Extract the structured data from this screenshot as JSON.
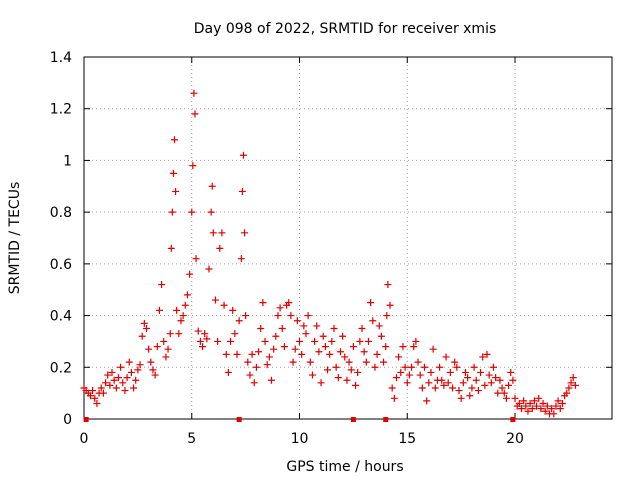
{
  "chart_data": {
    "type": "scatter",
    "title": "Day 098 of 2022, SRMTID for receiver xmis",
    "xlabel": "GPS time / hours",
    "ylabel": "SRMTID / TECUs",
    "xlim": [
      0,
      24.5
    ],
    "ylim": [
      0,
      1.4
    ],
    "xticks": [
      0,
      5,
      10,
      15,
      20
    ],
    "xtick_labels": [
      "0",
      "5",
      "10",
      "15",
      "20"
    ],
    "yticks": [
      0,
      0.2,
      0.4,
      0.6,
      0.8,
      1.0,
      1.2,
      1.4
    ],
    "ytick_labels": [
      "0",
      "0.2",
      "0.4",
      "0.6",
      "0.8",
      "1",
      "1.2",
      "1.4"
    ],
    "grid": true,
    "marker": "+",
    "color": "#e00000",
    "series": [
      {
        "name": "SRMTID",
        "points": [
          [
            0.0,
            0.12
          ],
          [
            0.1,
            0.11
          ],
          [
            0.2,
            0.1
          ],
          [
            0.3,
            0.09
          ],
          [
            0.4,
            0.11
          ],
          [
            0.5,
            0.08
          ],
          [
            0.6,
            0.06
          ],
          [
            0.7,
            0.1
          ],
          [
            0.8,
            0.12
          ],
          [
            0.9,
            0.1
          ],
          [
            1.0,
            0.14
          ],
          [
            1.1,
            0.17
          ],
          [
            1.2,
            0.13
          ],
          [
            1.3,
            0.18
          ],
          [
            1.4,
            0.15
          ],
          [
            1.5,
            0.12
          ],
          [
            1.6,
            0.16
          ],
          [
            1.7,
            0.2
          ],
          [
            1.8,
            0.14
          ],
          [
            1.9,
            0.11
          ],
          [
            2.0,
            0.16
          ],
          [
            2.1,
            0.22
          ],
          [
            2.2,
            0.18
          ],
          [
            2.3,
            0.12
          ],
          [
            2.4,
            0.15
          ],
          [
            2.5,
            0.19
          ],
          [
            2.6,
            0.21
          ],
          [
            2.7,
            0.32
          ],
          [
            2.8,
            0.37
          ],
          [
            2.9,
            0.35
          ],
          [
            3.0,
            0.27
          ],
          [
            3.1,
            0.22
          ],
          [
            3.2,
            0.19
          ],
          [
            3.3,
            0.17
          ],
          [
            3.4,
            0.28
          ],
          [
            3.5,
            0.42
          ],
          [
            3.6,
            0.52
          ],
          [
            3.7,
            0.3
          ],
          [
            3.8,
            0.24
          ],
          [
            3.9,
            0.27
          ],
          [
            4.0,
            0.33
          ],
          [
            4.05,
            0.66
          ],
          [
            4.1,
            0.8
          ],
          [
            4.15,
            0.95
          ],
          [
            4.2,
            1.08
          ],
          [
            4.25,
            0.88
          ],
          [
            4.3,
            0.42
          ],
          [
            4.4,
            0.33
          ],
          [
            4.5,
            0.38
          ],
          [
            4.6,
            0.4
          ],
          [
            4.7,
            0.44
          ],
          [
            4.8,
            0.48
          ],
          [
            4.9,
            0.56
          ],
          [
            5.0,
            0.8
          ],
          [
            5.05,
            0.98
          ],
          [
            5.1,
            1.26
          ],
          [
            5.15,
            1.18
          ],
          [
            5.2,
            0.62
          ],
          [
            5.3,
            0.34
          ],
          [
            5.4,
            0.3
          ],
          [
            5.5,
            0.28
          ],
          [
            5.6,
            0.33
          ],
          [
            5.7,
            0.31
          ],
          [
            5.8,
            0.58
          ],
          [
            5.9,
            0.8
          ],
          [
            5.95,
            0.9
          ],
          [
            6.0,
            0.72
          ],
          [
            6.1,
            0.46
          ],
          [
            6.2,
            0.3
          ],
          [
            6.3,
            0.66
          ],
          [
            6.4,
            0.72
          ],
          [
            6.5,
            0.44
          ],
          [
            6.6,
            0.25
          ],
          [
            6.7,
            0.18
          ],
          [
            6.8,
            0.3
          ],
          [
            6.9,
            0.42
          ],
          [
            7.0,
            0.33
          ],
          [
            7.1,
            0.25
          ],
          [
            7.2,
            0.38
          ],
          [
            7.3,
            0.62
          ],
          [
            7.35,
            0.88
          ],
          [
            7.4,
            1.02
          ],
          [
            7.45,
            0.72
          ],
          [
            7.5,
            0.4
          ],
          [
            7.6,
            0.22
          ],
          [
            7.7,
            0.17
          ],
          [
            7.8,
            0.25
          ],
          [
            7.9,
            0.14
          ],
          [
            8.0,
            0.2
          ],
          [
            8.1,
            0.26
          ],
          [
            8.2,
            0.35
          ],
          [
            8.3,
            0.45
          ],
          [
            8.4,
            0.3
          ],
          [
            8.5,
            0.21
          ],
          [
            8.6,
            0.24
          ],
          [
            8.7,
            0.15
          ],
          [
            8.8,
            0.27
          ],
          [
            8.9,
            0.32
          ],
          [
            9.0,
            0.4
          ],
          [
            9.1,
            0.43
          ],
          [
            9.2,
            0.35
          ],
          [
            9.3,
            0.28
          ],
          [
            9.4,
            0.44
          ],
          [
            9.5,
            0.45
          ],
          [
            9.6,
            0.4
          ],
          [
            9.7,
            0.22
          ],
          [
            9.8,
            0.27
          ],
          [
            9.9,
            0.38
          ],
          [
            10.0,
            0.3
          ],
          [
            10.1,
            0.25
          ],
          [
            10.2,
            0.36
          ],
          [
            10.3,
            0.33
          ],
          [
            10.4,
            0.4
          ],
          [
            10.5,
            0.22
          ],
          [
            10.6,
            0.17
          ],
          [
            10.7,
            0.3
          ],
          [
            10.8,
            0.36
          ],
          [
            10.9,
            0.26
          ],
          [
            11.0,
            0.14
          ],
          [
            11.1,
            0.32
          ],
          [
            11.2,
            0.28
          ],
          [
            11.3,
            0.19
          ],
          [
            11.4,
            0.25
          ],
          [
            11.5,
            0.3
          ],
          [
            11.6,
            0.35
          ],
          [
            11.7,
            0.2
          ],
          [
            11.8,
            0.16
          ],
          [
            11.9,
            0.26
          ],
          [
            12.0,
            0.32
          ],
          [
            12.1,
            0.24
          ],
          [
            12.2,
            0.15
          ],
          [
            12.3,
            0.22
          ],
          [
            12.4,
            0.19
          ],
          [
            12.5,
            0.28
          ],
          [
            12.6,
            0.13
          ],
          [
            12.7,
            0.18
          ],
          [
            12.8,
            0.3
          ],
          [
            12.9,
            0.35
          ],
          [
            13.0,
            0.26
          ],
          [
            13.1,
            0.22
          ],
          [
            13.2,
            0.3
          ],
          [
            13.3,
            0.45
          ],
          [
            13.4,
            0.38
          ],
          [
            13.5,
            0.2
          ],
          [
            13.6,
            0.25
          ],
          [
            13.7,
            0.36
          ],
          [
            13.8,
            0.32
          ],
          [
            13.9,
            0.22
          ],
          [
            14.0,
            0.28
          ],
          [
            14.05,
            0.4
          ],
          [
            14.1,
            0.52
          ],
          [
            14.2,
            0.44
          ],
          [
            14.3,
            0.12
          ],
          [
            14.4,
            0.08
          ],
          [
            14.5,
            0.16
          ],
          [
            14.6,
            0.24
          ],
          [
            14.7,
            0.18
          ],
          [
            14.8,
            0.28
          ],
          [
            14.9,
            0.2
          ],
          [
            15.0,
            0.14
          ],
          [
            15.1,
            0.17
          ],
          [
            15.2,
            0.2
          ],
          [
            15.3,
            0.28
          ],
          [
            15.4,
            0.3
          ],
          [
            15.5,
            0.22
          ],
          [
            15.6,
            0.17
          ],
          [
            15.7,
            0.12
          ],
          [
            15.8,
            0.2
          ],
          [
            15.9,
            0.07
          ],
          [
            16.0,
            0.14
          ],
          [
            16.1,
            0.18
          ],
          [
            16.2,
            0.27
          ],
          [
            16.3,
            0.12
          ],
          [
            16.4,
            0.15
          ],
          [
            16.5,
            0.2
          ],
          [
            16.6,
            0.15
          ],
          [
            16.7,
            0.13
          ],
          [
            16.8,
            0.24
          ],
          [
            16.9,
            0.14
          ],
          [
            17.0,
            0.18
          ],
          [
            17.1,
            0.12
          ],
          [
            17.2,
            0.22
          ],
          [
            17.3,
            0.2
          ],
          [
            17.4,
            0.11
          ],
          [
            17.5,
            0.08
          ],
          [
            17.6,
            0.14
          ],
          [
            17.7,
            0.18
          ],
          [
            17.8,
            0.16
          ],
          [
            17.9,
            0.09
          ],
          [
            18.0,
            0.12
          ],
          [
            18.1,
            0.2
          ],
          [
            18.2,
            0.15
          ],
          [
            18.3,
            0.11
          ],
          [
            18.4,
            0.18
          ],
          [
            18.5,
            0.24
          ],
          [
            18.6,
            0.13
          ],
          [
            18.7,
            0.25
          ],
          [
            18.8,
            0.17
          ],
          [
            18.9,
            0.14
          ],
          [
            19.0,
            0.2
          ],
          [
            19.1,
            0.16
          ],
          [
            19.2,
            0.1
          ],
          [
            19.3,
            0.15
          ],
          [
            19.4,
            0.12
          ],
          [
            19.5,
            0.1
          ],
          [
            19.6,
            0.08
          ],
          [
            19.7,
            0.13
          ],
          [
            19.8,
            0.18
          ],
          [
            19.9,
            0.15
          ],
          [
            20.0,
            0.08
          ],
          [
            20.1,
            0.05
          ],
          [
            20.2,
            0.06
          ],
          [
            20.3,
            0.04
          ],
          [
            20.4,
            0.07
          ],
          [
            20.5,
            0.05
          ],
          [
            20.6,
            0.03
          ],
          [
            20.7,
            0.06
          ],
          [
            20.8,
            0.04
          ],
          [
            20.9,
            0.07
          ],
          [
            21.0,
            0.05
          ],
          [
            21.1,
            0.08
          ],
          [
            21.2,
            0.04
          ],
          [
            21.3,
            0.06
          ],
          [
            21.4,
            0.03
          ],
          [
            21.5,
            0.05
          ],
          [
            21.6,
            0.02
          ],
          [
            21.7,
            0.04
          ],
          [
            21.8,
            0.02
          ],
          [
            21.9,
            0.05
          ],
          [
            22.0,
            0.07
          ],
          [
            22.1,
            0.04
          ],
          [
            22.2,
            0.06
          ],
          [
            22.3,
            0.09
          ],
          [
            22.4,
            0.1
          ],
          [
            22.5,
            0.12
          ],
          [
            22.6,
            0.14
          ],
          [
            22.7,
            0.16
          ],
          [
            22.8,
            0.13
          ]
        ]
      }
    ],
    "axis_markers_x": [
      0.1,
      7.2,
      12.5,
      14.0,
      19.9
    ]
  }
}
